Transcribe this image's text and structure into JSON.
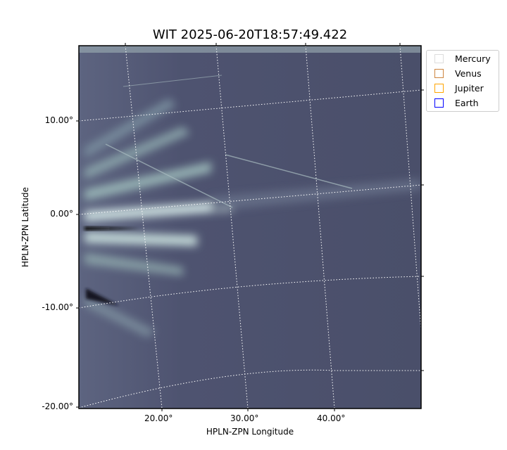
{
  "chart_data": {
    "type": "heatmap",
    "title": "WIT 2025-06-20T18:57:49.422",
    "xlabel": "HPLN-ZPN Longitude",
    "ylabel": "HPLN-ZPN Latitude",
    "x_ticks": [
      "20.00°",
      "30.00°",
      "40.00°"
    ],
    "y_ticks": [
      "10.00°",
      "0.00°",
      "-10.00°",
      "-20.00°"
    ],
    "grid": true,
    "colormap": "bone",
    "legend_placement": "outside-top-right",
    "legend": [
      {
        "label": "Mercury",
        "color": "#dddddd"
      },
      {
        "label": "Venus",
        "color": "#cd853f"
      },
      {
        "label": "Jupiter",
        "color": "#ffa500"
      },
      {
        "label": "Earth",
        "color": "#0000ff"
      }
    ]
  }
}
